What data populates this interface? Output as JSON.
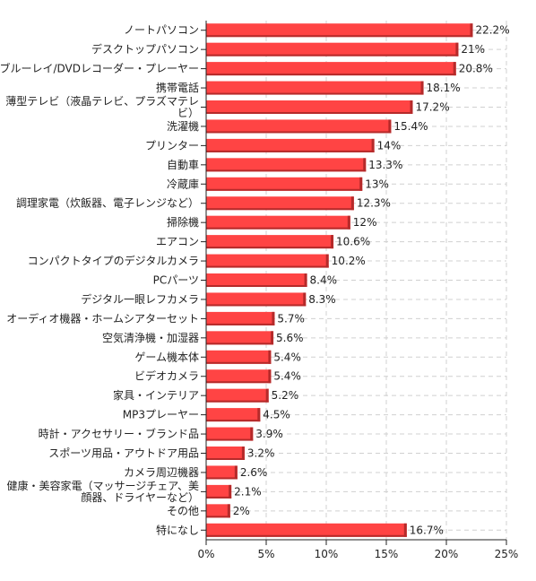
{
  "chart_data": {
    "type": "bar",
    "orientation": "horizontal",
    "title": "",
    "xlabel": "",
    "ylabel": "",
    "xlim": [
      0,
      25
    ],
    "x_ticks": [
      0,
      5,
      10,
      15,
      20,
      25
    ],
    "x_tick_labels": [
      "0%",
      "5%",
      "10%",
      "15%",
      "20%",
      "25%"
    ],
    "grid": true,
    "bar_color": "#ff4444",
    "bar_shadow_color": "#b52a2a",
    "categories": [
      [
        "ノートパソコン"
      ],
      [
        "デスクトップパソコン"
      ],
      [
        "ブルーレイ/DVDレコーダー・プレーヤー"
      ],
      [
        "携帯電話"
      ],
      [
        "薄型テレビ（液晶テレビ、プラズマテレ",
        "ビ）"
      ],
      [
        "洗濯機"
      ],
      [
        "プリンター"
      ],
      [
        "自動車"
      ],
      [
        "冷蔵庫"
      ],
      [
        "調理家電（炊飯器、電子レンジなど）"
      ],
      [
        "掃除機"
      ],
      [
        "エアコン"
      ],
      [
        "コンパクトタイプのデジタルカメラ"
      ],
      [
        "PCパーツ"
      ],
      [
        "デジタル一眼レフカメラ"
      ],
      [
        "オーディオ機器・ホームシアターセット"
      ],
      [
        "空気清浄機・加湿器"
      ],
      [
        "ゲーム機本体"
      ],
      [
        "ビデオカメラ"
      ],
      [
        "家具・インテリア"
      ],
      [
        "MP3プレーヤー"
      ],
      [
        "時計・アクセサリー・ブランド品"
      ],
      [
        "スポーツ用品・アウトドア用品"
      ],
      [
        "カメラ周辺機器"
      ],
      [
        "健康・美容家電（マッサージチェア、美",
        "顔器、ドライヤーなど）"
      ],
      [
        "その他"
      ],
      [
        "特になし"
      ]
    ],
    "values": [
      22.2,
      21,
      20.8,
      18.1,
      17.2,
      15.4,
      14,
      13.3,
      13,
      12.3,
      12,
      10.6,
      10.2,
      8.4,
      8.3,
      5.7,
      5.6,
      5.4,
      5.4,
      5.2,
      4.5,
      3.9,
      3.2,
      2.6,
      2.1,
      2,
      16.7
    ],
    "value_labels": [
      "22.2%",
      "21%",
      "20.8%",
      "18.1%",
      "17.2%",
      "15.4%",
      "14%",
      "13.3%",
      "13%",
      "12.3%",
      "12%",
      "10.6%",
      "10.2%",
      "8.4%",
      "8.3%",
      "5.7%",
      "5.6%",
      "5.4%",
      "5.4%",
      "5.2%",
      "4.5%",
      "3.9%",
      "3.2%",
      "2.6%",
      "2.1%",
      "2%",
      "16.7%"
    ]
  }
}
